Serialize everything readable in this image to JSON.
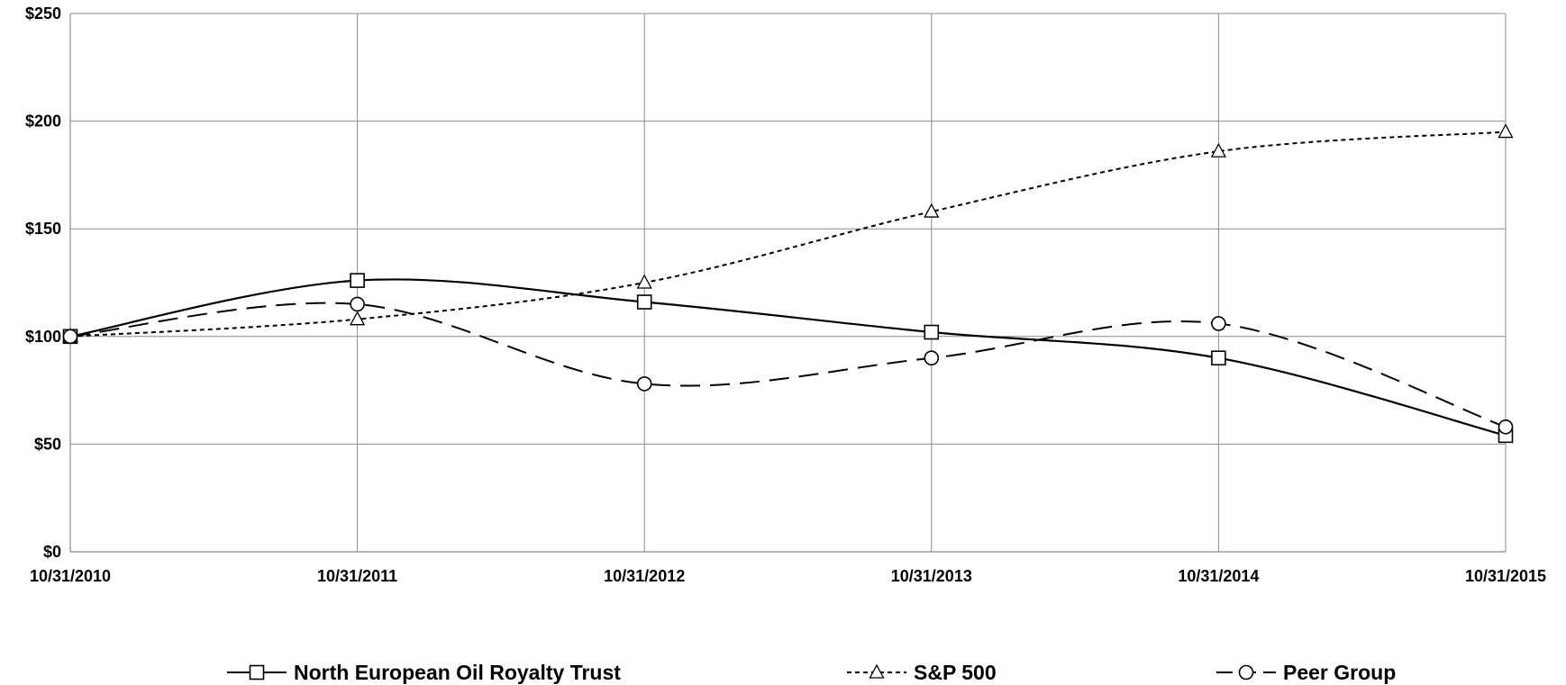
{
  "chart_data": {
    "type": "line",
    "title": "",
    "xlabel": "",
    "ylabel": "",
    "categories": [
      "10/31/2010",
      "10/31/2011",
      "10/31/2012",
      "10/31/2013",
      "10/31/2014",
      "10/31/2015"
    ],
    "ylim": [
      0,
      250
    ],
    "yticks": [
      0,
      50,
      100,
      150,
      200,
      250
    ],
    "ytick_labels": [
      "$0",
      "$50",
      "$100",
      "$150",
      "$200",
      "$250"
    ],
    "grid": true,
    "legend_position": "bottom",
    "series": [
      {
        "name": "North European Oil Royalty Trust",
        "values": [
          100,
          126,
          116,
          102,
          90,
          54
        ],
        "line_style": "solid",
        "marker": "square",
        "color": "#000000"
      },
      {
        "name": "S&P 500",
        "values": [
          100,
          108,
          125,
          158,
          186,
          195
        ],
        "line_style": "dotted",
        "marker": "triangle",
        "color": "#000000"
      },
      {
        "name": "Peer Group",
        "values": [
          100,
          115,
          78,
          90,
          106,
          58
        ],
        "line_style": "dashed",
        "marker": "circle",
        "color": "#000000"
      }
    ]
  }
}
